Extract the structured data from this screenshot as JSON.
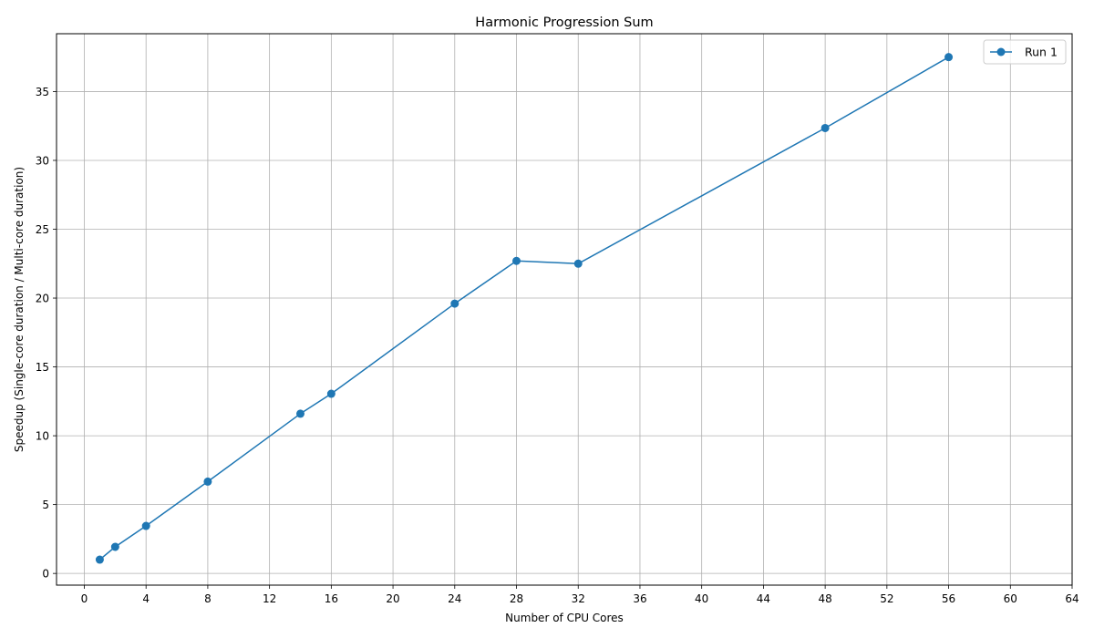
{
  "chart_data": {
    "type": "line",
    "title": "Harmonic Progression Sum",
    "xlabel": "Number of CPU Cores",
    "ylabel": "Speedup (Single-core duration / Multi-core duration)",
    "xlim": [
      -1.8,
      64
    ],
    "ylim": [
      -0.85,
      39.2
    ],
    "xticks": [
      0,
      4,
      8,
      12,
      16,
      20,
      24,
      28,
      32,
      36,
      40,
      44,
      48,
      52,
      56,
      60,
      64
    ],
    "yticks": [
      0,
      5,
      10,
      15,
      20,
      25,
      30,
      35
    ],
    "grid": true,
    "legend_position": "top-right",
    "series": [
      {
        "name": "Run 1",
        "color": "#1f77b4",
        "marker": "circle",
        "x": [
          1,
          2,
          4,
          8,
          14,
          16,
          24,
          28,
          32,
          48,
          56
        ],
        "y": [
          1.0,
          1.93,
          3.45,
          6.67,
          11.6,
          13.05,
          19.6,
          22.7,
          22.5,
          32.35,
          37.5
        ]
      }
    ]
  }
}
